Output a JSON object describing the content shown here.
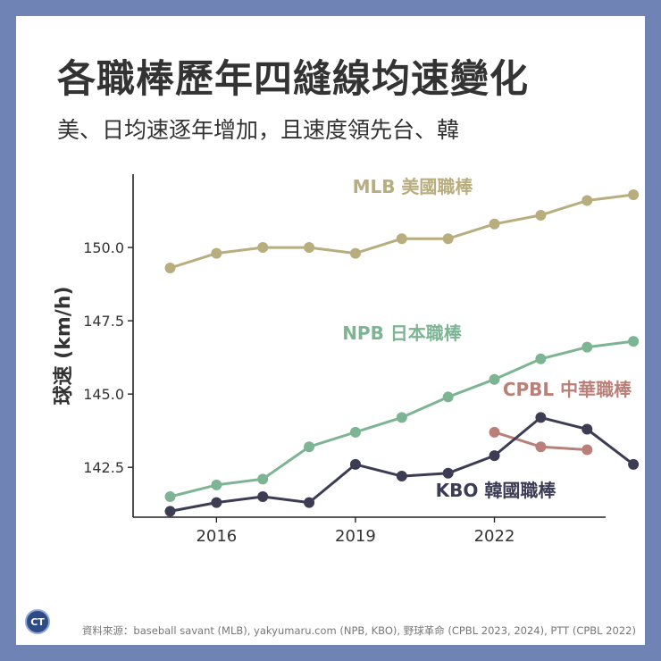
{
  "title": "各職棒歷年四縫線均速變化",
  "subtitle": "美、日均速逐年增加，且速度領先台、韓",
  "source": "資料來源：baseball savant (MLB), yakyumaru.com (NPB, KBO), 野球革命 (CPBL 2023, 2024), PTT (CPBL 2022)",
  "logo_text": "CT",
  "chart_data": {
    "type": "line",
    "ylabel": "球速 (km/h)",
    "xlabel": "",
    "xlim": [
      2014.2,
      2024.4
    ],
    "ylim": [
      140.8,
      152.5
    ],
    "xticks": [
      2016,
      2019,
      2022
    ],
    "yticks": [
      142.5,
      145.0,
      147.5,
      150.0
    ],
    "ytick_labels": [
      "142.5",
      "145.0",
      "147.5",
      "150.0"
    ],
    "grid": false,
    "series": [
      {
        "name": "MLB 美國職棒",
        "color": "#b8ad7e",
        "x": [
          2015,
          2016,
          2017,
          2018,
          2019,
          2020,
          2021,
          2022,
          2023,
          2024,
          2025
        ],
        "values": [
          149.3,
          149.8,
          150.0,
          150.0,
          149.8,
          150.3,
          150.3,
          150.8,
          151.1,
          151.6,
          151.8
        ]
      },
      {
        "name": "NPB 日本職棒",
        "color": "#7db594",
        "x": [
          2015,
          2016,
          2017,
          2018,
          2019,
          2020,
          2021,
          2022,
          2023,
          2024,
          2025
        ],
        "values": [
          141.5,
          141.9,
          142.1,
          143.2,
          143.7,
          144.2,
          144.9,
          145.5,
          146.2,
          146.6,
          146.8
        ]
      },
      {
        "name": "CPBL 中華職棒",
        "color": "#b88078",
        "x": [
          2022,
          2023,
          2024
        ],
        "values": [
          143.7,
          143.2,
          143.1
        ]
      },
      {
        "name": "KBO 韓國職棒",
        "color": "#3c3c55",
        "x": [
          2015,
          2016,
          2017,
          2018,
          2019,
          2020,
          2021,
          2022,
          2023,
          2024,
          2025
        ],
        "values": [
          141.0,
          141.3,
          141.5,
          141.3,
          142.6,
          142.2,
          142.3,
          142.9,
          144.2,
          143.8,
          142.6
        ]
      }
    ]
  }
}
